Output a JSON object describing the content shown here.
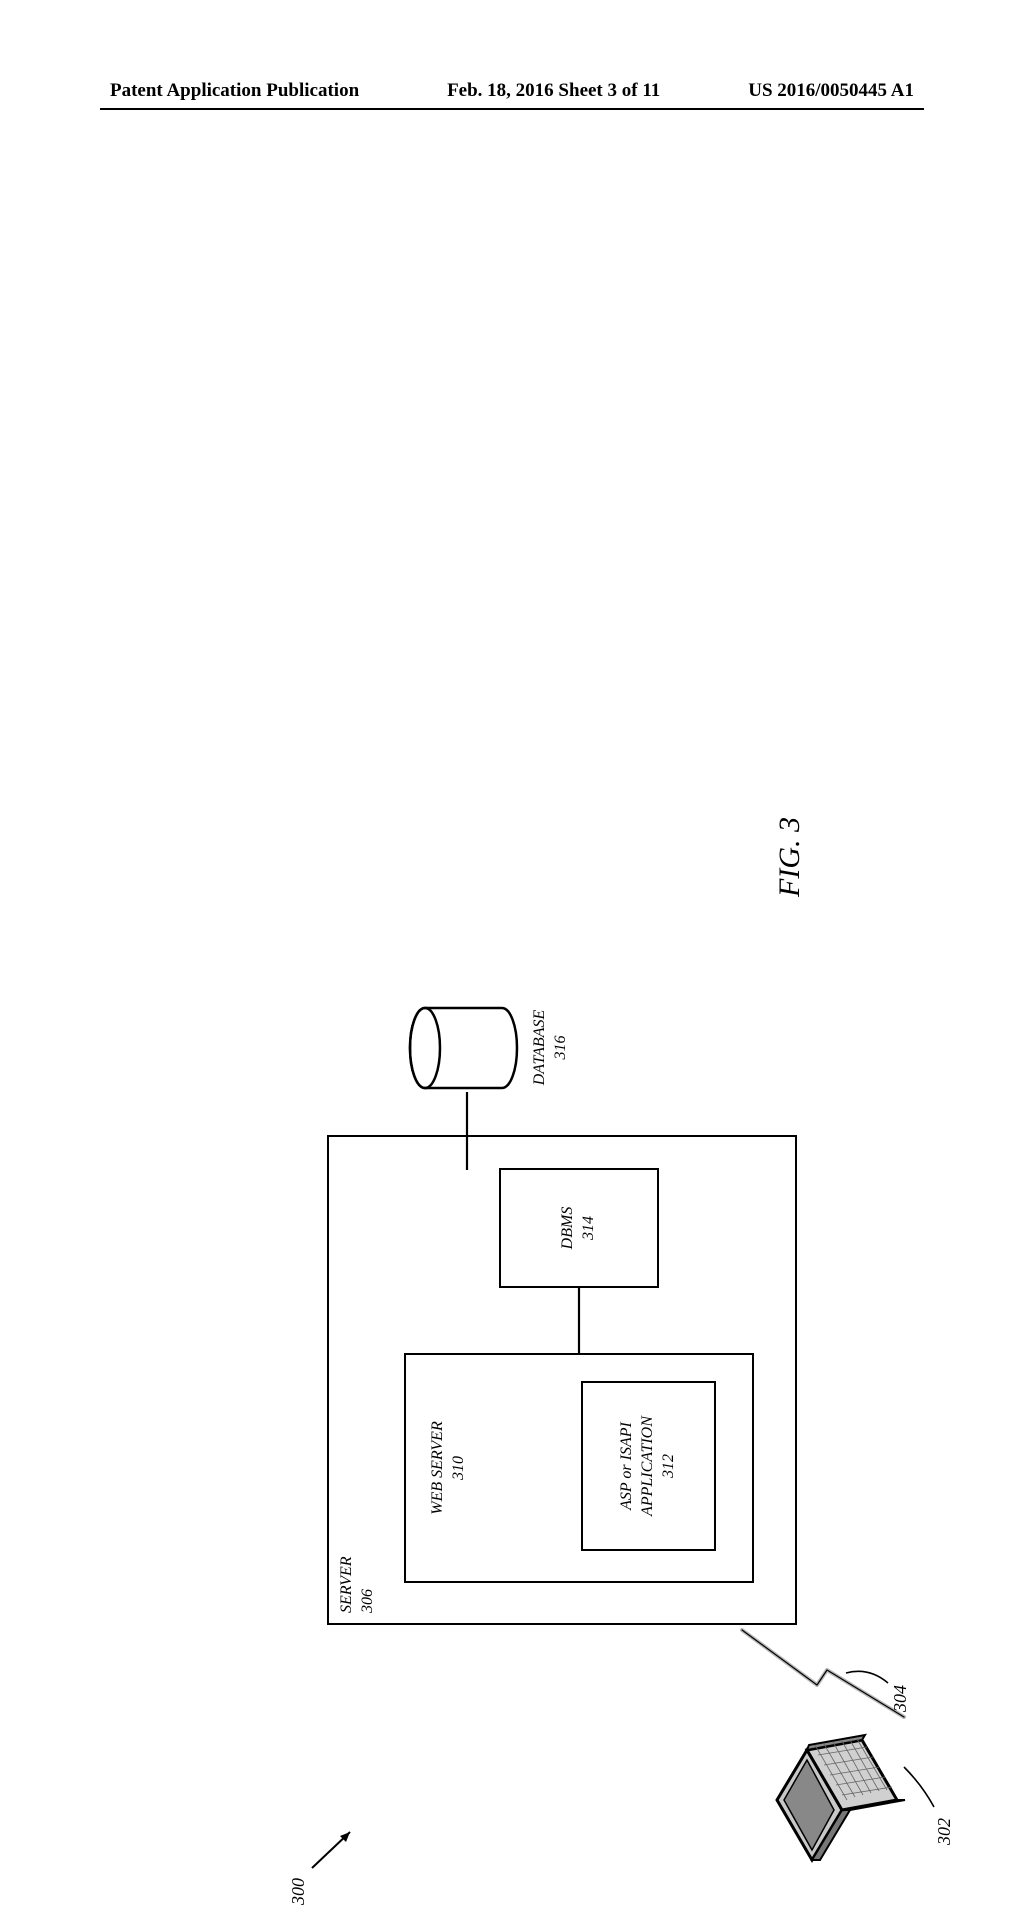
{
  "header": {
    "left": "Patent Application Publication",
    "center": "Feb. 18, 2016  Sheet 3 of 11",
    "right": "US 2016/0050445 A1"
  },
  "figure_label": "FIG. 3",
  "refs": {
    "system": "300",
    "client": "302",
    "network": "304",
    "server": "SERVER",
    "server_num": "306",
    "webserver": "WEB SERVER",
    "webserver_num": "310",
    "application": "ASP or ISAPI\nAPPLICATION",
    "application_num": "312",
    "dbms": "DBMS",
    "dbms_num": "314",
    "database": "DATABASE",
    "database_num": "316"
  },
  "layout": {
    "rotation_deg": -90,
    "colors": {
      "stroke": "#000000",
      "bg": "#ffffff",
      "fill_light": "#d8d8d8",
      "fill_dark": "#a8a8a8"
    },
    "stroke_width": 2.2
  }
}
